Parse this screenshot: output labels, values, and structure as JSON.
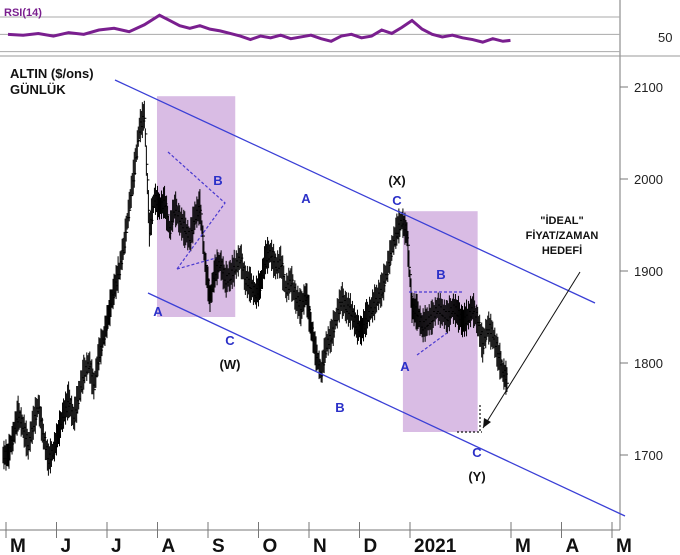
{
  "chart_data": {
    "type": "line",
    "title": "ALTIN ($/ons)",
    "subtitle": "GÜNLÜK",
    "months": [
      "M",
      "J",
      "J",
      "A",
      "S",
      "O",
      "N",
      "D",
      "2021",
      "M",
      "A",
      "M"
    ],
    "month_index": [
      0,
      1,
      2,
      3,
      4,
      5,
      6,
      7,
      8,
      10,
      11,
      12
    ],
    "ylim": [
      1620,
      2140
    ],
    "yticks": [
      1700,
      1800,
      1900,
      2000,
      2100
    ],
    "rsi": {
      "label": "RSI(14)",
      "level_label": "50",
      "ylim": [
        25,
        85
      ],
      "levels": [
        30,
        50,
        70
      ],
      "points": [
        [
          0,
          50
        ],
        [
          0.3,
          49
        ],
        [
          0.6,
          51
        ],
        [
          0.9,
          48
        ],
        [
          1.2,
          52
        ],
        [
          1.5,
          50
        ],
        [
          1.8,
          55
        ],
        [
          2.1,
          57
        ],
        [
          2.4,
          53
        ],
        [
          2.7,
          61
        ],
        [
          3.0,
          72
        ],
        [
          3.2,
          66
        ],
        [
          3.4,
          60
        ],
        [
          3.6,
          57
        ],
        [
          3.8,
          60
        ],
        [
          4.0,
          56
        ],
        [
          4.2,
          54
        ],
        [
          4.4,
          51
        ],
        [
          4.6,
          48
        ],
        [
          4.8,
          44
        ],
        [
          5.0,
          48
        ],
        [
          5.2,
          46
        ],
        [
          5.4,
          49
        ],
        [
          5.6,
          45
        ],
        [
          5.8,
          47
        ],
        [
          6.0,
          49
        ],
        [
          6.2,
          45
        ],
        [
          6.4,
          42
        ],
        [
          6.6,
          48
        ],
        [
          6.8,
          50
        ],
        [
          7.0,
          46
        ],
        [
          7.2,
          48
        ],
        [
          7.4,
          55
        ],
        [
          7.6,
          51
        ],
        [
          7.8,
          58
        ],
        [
          8.0,
          66
        ],
        [
          8.2,
          56
        ],
        [
          8.4,
          50
        ],
        [
          8.6,
          47
        ],
        [
          8.8,
          49
        ],
        [
          9.0,
          46
        ],
        [
          9.2,
          44
        ],
        [
          9.4,
          41
        ],
        [
          9.6,
          45
        ],
        [
          9.8,
          42
        ],
        [
          9.95,
          43
        ]
      ]
    },
    "series": [
      {
        "type": "ohlc",
        "x": [
          0,
          0.1,
          0.2,
          0.3,
          0.4,
          0.5,
          0.6,
          0.7,
          0.8,
          0.9,
          1.0,
          1.1,
          1.2,
          1.3,
          1.4,
          1.5,
          1.6,
          1.7,
          1.8,
          1.9,
          2.0,
          2.1,
          2.2,
          2.3,
          2.4,
          2.5,
          2.6,
          2.7,
          2.8,
          2.9,
          3.0,
          3.1,
          3.2,
          3.3,
          3.4,
          3.5,
          3.6,
          3.7,
          3.8,
          3.9,
          4.0,
          4.1,
          4.2,
          4.3,
          4.4,
          4.5,
          4.6,
          4.7,
          4.8,
          4.9,
          5.0,
          5.1,
          5.2,
          5.3,
          5.4,
          5.5,
          5.6,
          5.7,
          5.8,
          5.9,
          6.0,
          6.1,
          6.2,
          6.3,
          6.4,
          6.5,
          6.6,
          6.7,
          6.8,
          6.9,
          7.0,
          7.1,
          7.2,
          7.3,
          7.4,
          7.5,
          7.6,
          7.7,
          7.8,
          7.9,
          8.0,
          8.1,
          8.2,
          8.3,
          8.4,
          8.5,
          8.6,
          8.7,
          8.8,
          8.9,
          9.0,
          9.1,
          9.2,
          9.3,
          9.4,
          9.5,
          9.6,
          9.7,
          9.8,
          9.9
        ],
        "y": [
          1700,
          1720,
          1745,
          1730,
          1710,
          1735,
          1755,
          1720,
          1695,
          1705,
          1725,
          1745,
          1760,
          1740,
          1765,
          1790,
          1800,
          1775,
          1810,
          1830,
          1855,
          1880,
          1900,
          1930,
          1970,
          2010,
          2055,
          2070,
          1945,
          1980,
          1970,
          1975,
          1945,
          1970,
          1955,
          1945,
          1935,
          1960,
          1970,
          1910,
          1870,
          1900,
          1910,
          1890,
          1895,
          1905,
          1915,
          1890,
          1885,
          1875,
          1885,
          1915,
          1920,
          1905,
          1910,
          1880,
          1890,
          1870,
          1860,
          1875,
          1840,
          1810,
          1790,
          1820,
          1830,
          1850,
          1870,
          1860,
          1855,
          1840,
          1835,
          1850,
          1860,
          1870,
          1880,
          1900,
          1925,
          1945,
          1955,
          1940,
          1860,
          1855,
          1840,
          1845,
          1850,
          1860,
          1855,
          1850,
          1860,
          1855,
          1845,
          1850,
          1860,
          1845,
          1820,
          1840,
          1830,
          1810,
          1790,
          1780
        ]
      }
    ],
    "annotations": {
      "point_labels": [
        "A",
        "B",
        "A",
        "C",
        "(W)",
        "A",
        "B",
        "(X)",
        "C",
        "B",
        "A",
        "C",
        "(Y)"
      ],
      "note": "\"İDEAL\"\nFİYAT/ZAMAN\nHEDEFİ"
    },
    "colors": {
      "price": "#000000",
      "rsi": "#7a1f8f",
      "channel": "#3a3fd6",
      "box": "#c9a0d8",
      "wave_label": "#2b30c8",
      "triangle": "#4a3ad0",
      "grid": "#cccccc"
    }
  }
}
